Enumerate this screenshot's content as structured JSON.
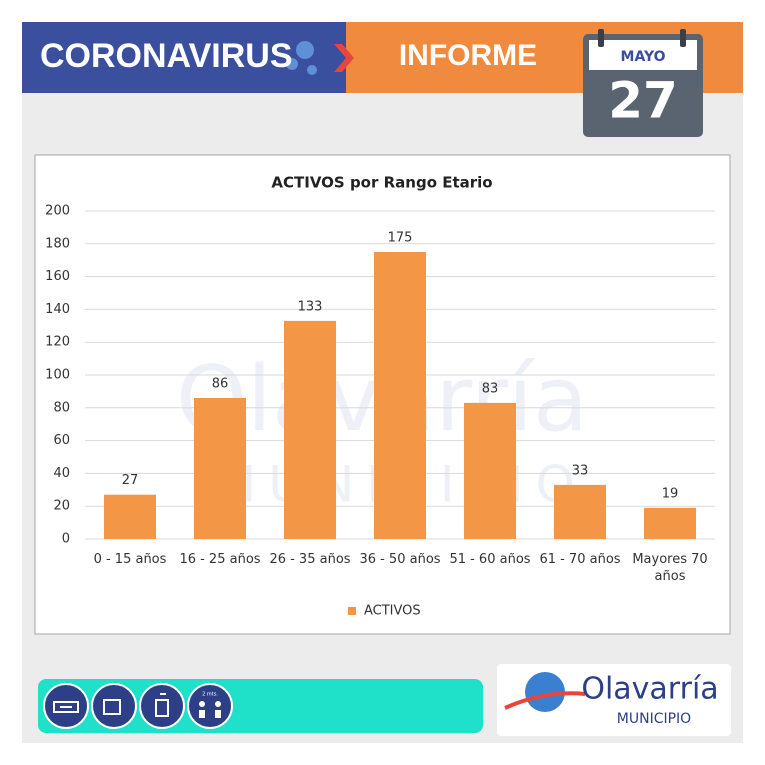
{
  "header": {
    "title": "CORONAVIRUS",
    "subtitle": "INFORME",
    "month": "MAYO",
    "day": "27"
  },
  "chart_data": {
    "type": "bar",
    "title": "ACTIVOS por Rango Etario",
    "categories": [
      "0 - 15 años",
      "16 - 25 años",
      "26 - 35 años",
      "36 - 50 años",
      "51 - 60 años",
      "61 - 70 años",
      "Mayores 70 años"
    ],
    "series": [
      {
        "name": "ACTIVOS",
        "color": "#f39746",
        "values": [
          27,
          86,
          133,
          175,
          83,
          33,
          19
        ]
      }
    ],
    "ylim": [
      0,
      200
    ],
    "yticks": [
      0,
      20,
      40,
      60,
      80,
      100,
      120,
      140,
      160,
      180,
      200
    ],
    "grid": true,
    "legend": "bottom"
  },
  "footer": {
    "distance_label": "2 mts.",
    "logo_name": "Olavarría",
    "logo_sub": "MUNICIPIO"
  }
}
